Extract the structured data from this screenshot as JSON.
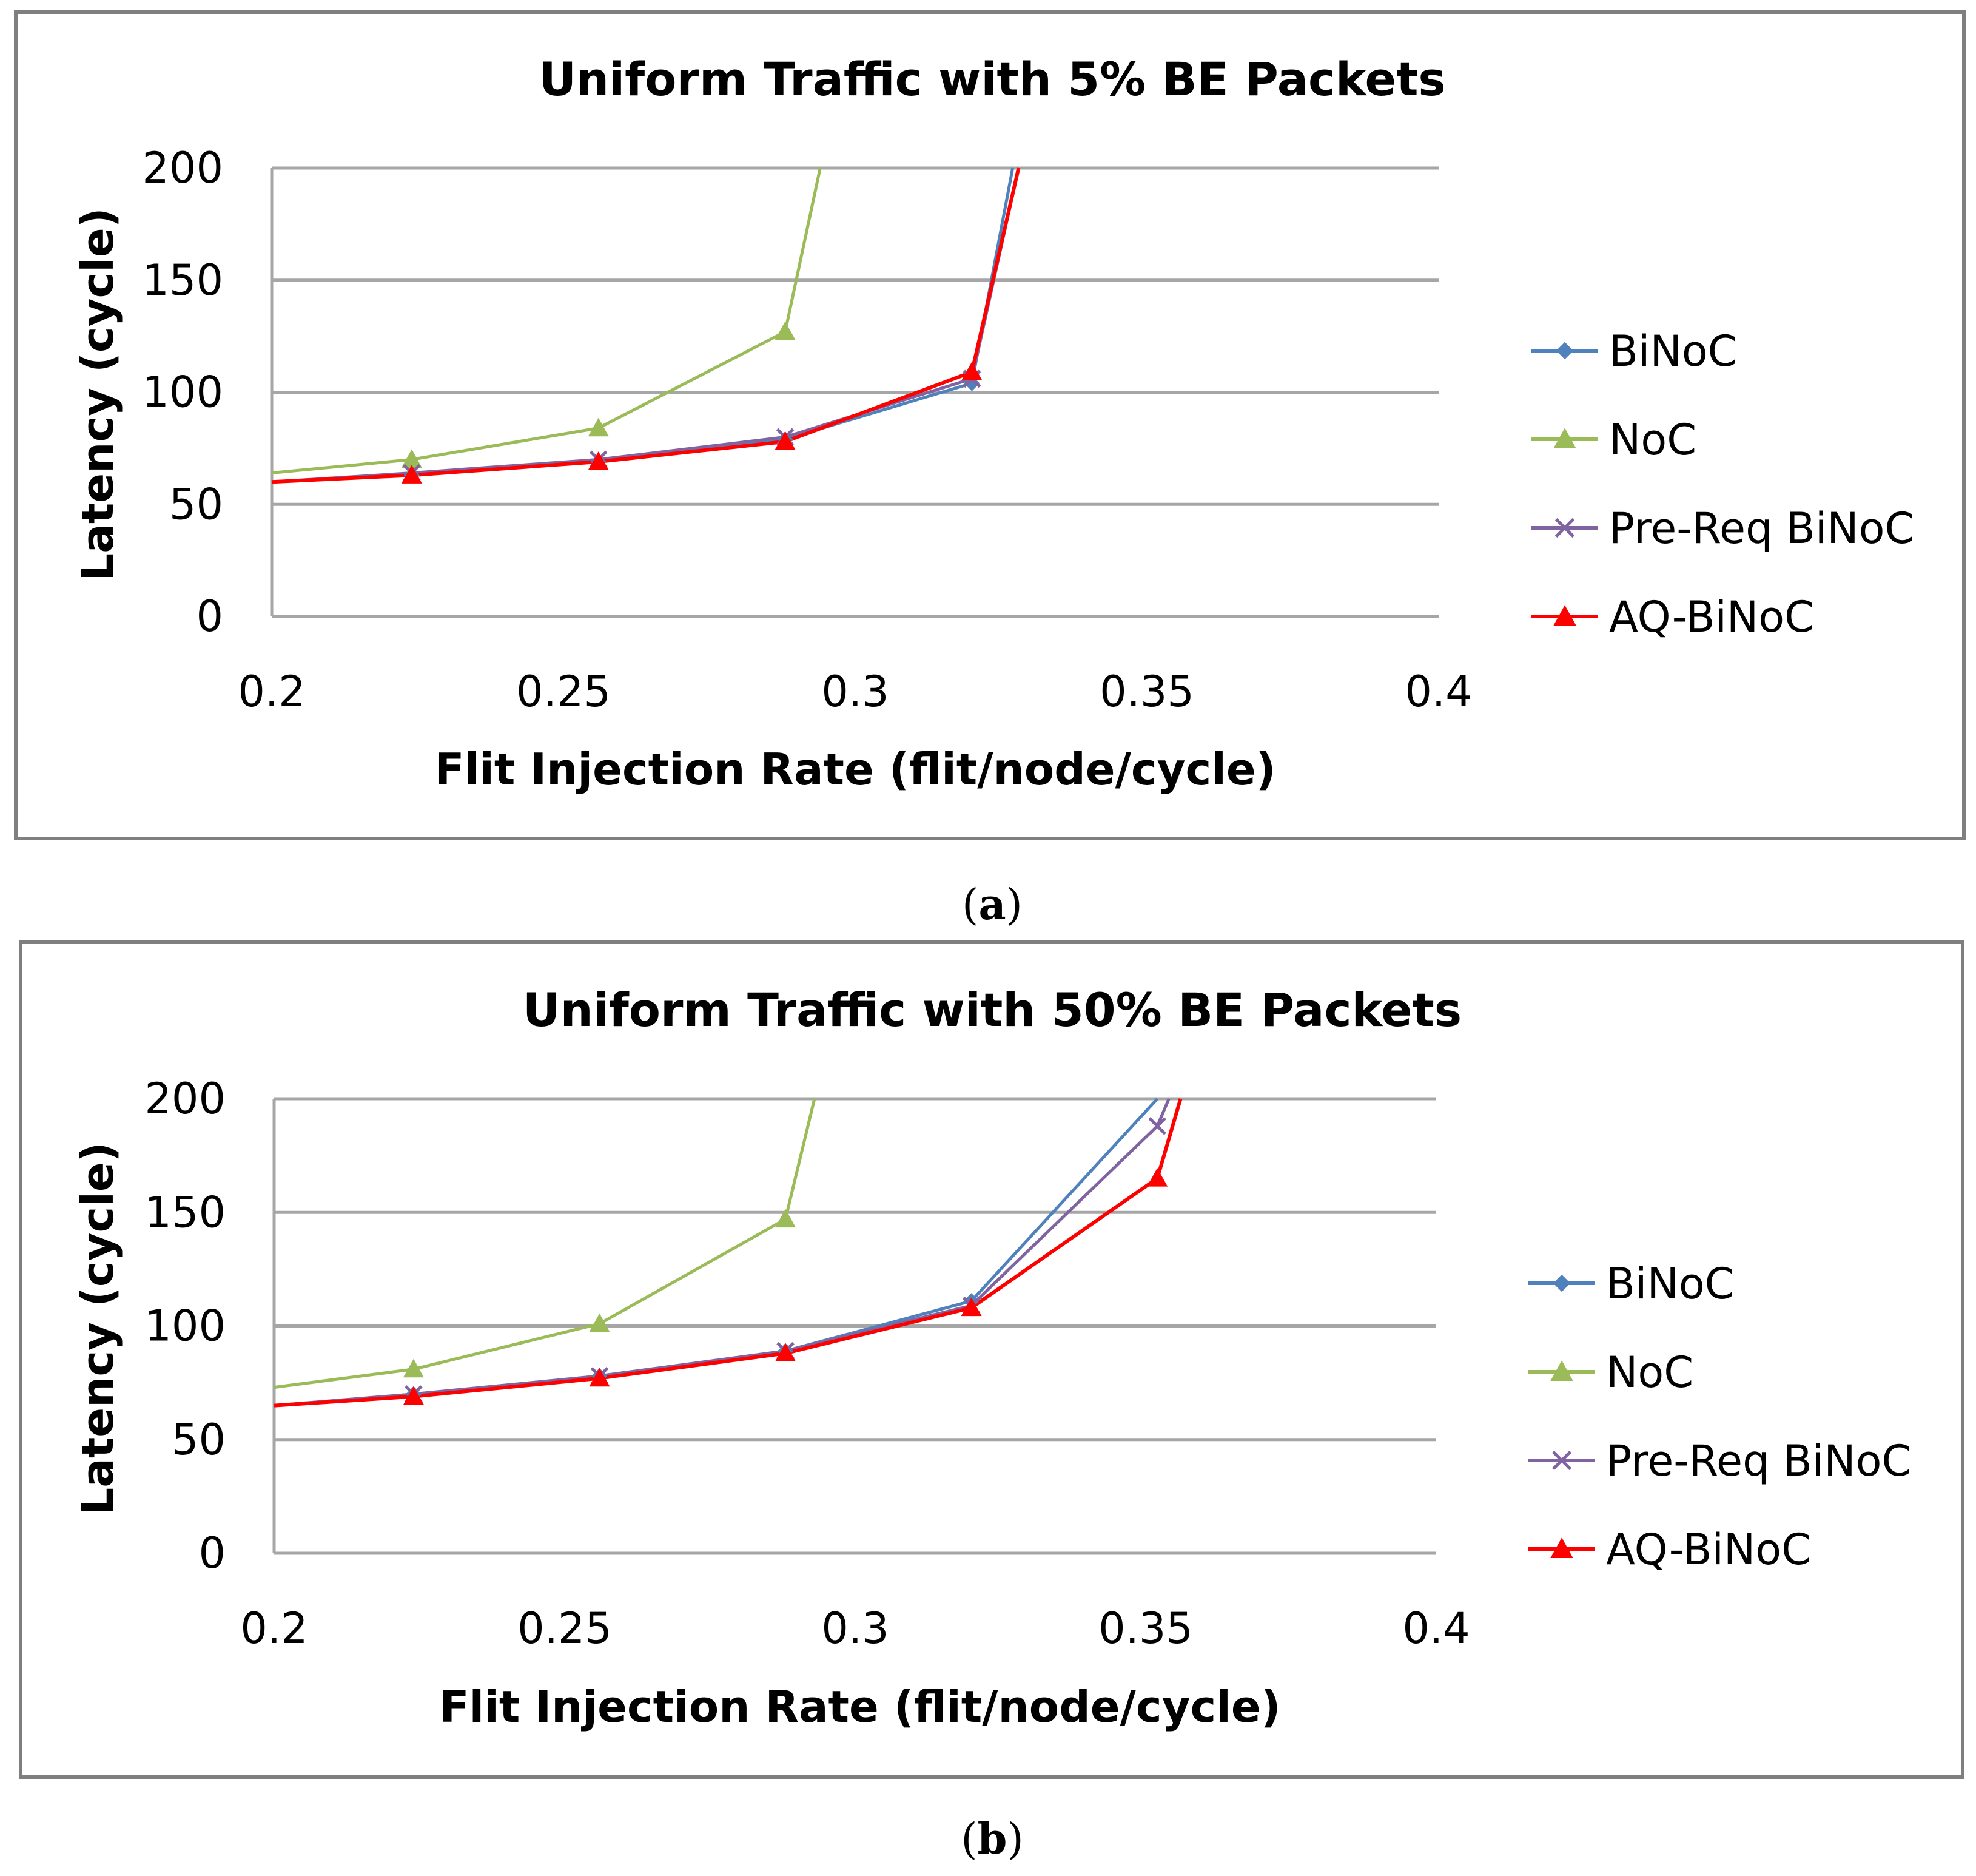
{
  "figure": {
    "caption_a": "(a)",
    "caption_b": "(b)",
    "caption_a_letter": "a",
    "caption_b_letter": "b"
  },
  "colors": {
    "BiNoC": "#4f81bd",
    "NoC": "#9bbb59",
    "Pre-Req BiNoC": "#8064a2",
    "AQ-BiNoC": "#ff0000",
    "grid": "#a6a6a6",
    "frame": "#7f7f7f",
    "text": "#000000"
  },
  "chart_data": [
    {
      "type": "line",
      "title": "Uniform Traffic with 5% BE Packets",
      "xlabel": "Flit Injection Rate (flit/node/cycle)",
      "ylabel": "Latency (cycle)",
      "xlim": [
        0.2,
        0.4
      ],
      "ylim": [
        0,
        200
      ],
      "xticks": [
        0.2,
        0.25,
        0.3,
        0.35,
        0.4
      ],
      "xtick_labels": [
        "0.2",
        "0.25",
        "0.3",
        "0.35",
        "0.4"
      ],
      "yticks": [
        0,
        50,
        100,
        150,
        200
      ],
      "ytick_labels": [
        "0",
        "50",
        "100",
        "150",
        "200"
      ],
      "grid": true,
      "legend_position": "right",
      "series": [
        {
          "name": "BiNoC",
          "marker": "diamond",
          "x": [
            0.2,
            0.224,
            0.256,
            0.288,
            0.32,
            0.327
          ],
          "y": [
            60,
            63,
            69,
            79,
            104,
            200
          ]
        },
        {
          "name": "NoC",
          "marker": "triangle",
          "x": [
            0.2,
            0.224,
            0.256,
            0.288,
            0.294
          ],
          "y": [
            64,
            70,
            84,
            127,
            200
          ]
        },
        {
          "name": "Pre-Req BiNoC",
          "marker": "x",
          "x": [
            0.2,
            0.224,
            0.256,
            0.288,
            0.32,
            0.328
          ],
          "y": [
            60,
            64,
            70,
            80,
            106,
            200
          ]
        },
        {
          "name": "AQ-BiNoC",
          "marker": "triangle",
          "x": [
            0.2,
            0.224,
            0.256,
            0.288,
            0.32,
            0.328
          ],
          "y": [
            60,
            63,
            69,
            78,
            109,
            200
          ]
        }
      ]
    },
    {
      "type": "line",
      "title": "Uniform Traffic with 50% BE Packets",
      "xlabel": "Flit Injection Rate (flit/node/cycle)",
      "ylabel": "Latency (cycle)",
      "xlim": [
        0.2,
        0.4
      ],
      "ylim": [
        0,
        200
      ],
      "xticks": [
        0.2,
        0.25,
        0.3,
        0.35,
        0.4
      ],
      "xtick_labels": [
        "0.2",
        "0.25",
        "0.3",
        "0.35",
        "0.4"
      ],
      "yticks": [
        0,
        50,
        100,
        150,
        200
      ],
      "ytick_labels": [
        "0",
        "50",
        "100",
        "150",
        "200"
      ],
      "grid": true,
      "legend_position": "right",
      "series": [
        {
          "name": "BiNoC",
          "marker": "diamond",
          "x": [
            0.2,
            0.224,
            0.256,
            0.288,
            0.32,
            0.352
          ],
          "y": [
            65,
            70,
            78,
            89,
            111,
            200
          ]
        },
        {
          "name": "NoC",
          "marker": "triangle",
          "x": [
            0.2,
            0.224,
            0.256,
            0.288,
            0.293
          ],
          "y": [
            73,
            81,
            101,
            147,
            200
          ]
        },
        {
          "name": "Pre-Req BiNoC",
          "marker": "x",
          "x": [
            0.2,
            0.224,
            0.256,
            0.288,
            0.32,
            0.352,
            0.354
          ],
          "y": [
            65,
            70,
            78,
            89,
            109,
            188,
            200
          ]
        },
        {
          "name": "AQ-BiNoC",
          "marker": "triangle",
          "x": [
            0.2,
            0.224,
            0.256,
            0.288,
            0.32,
            0.352,
            0.356
          ],
          "y": [
            65,
            69,
            77,
            88,
            108,
            165,
            200
          ]
        }
      ]
    }
  ]
}
